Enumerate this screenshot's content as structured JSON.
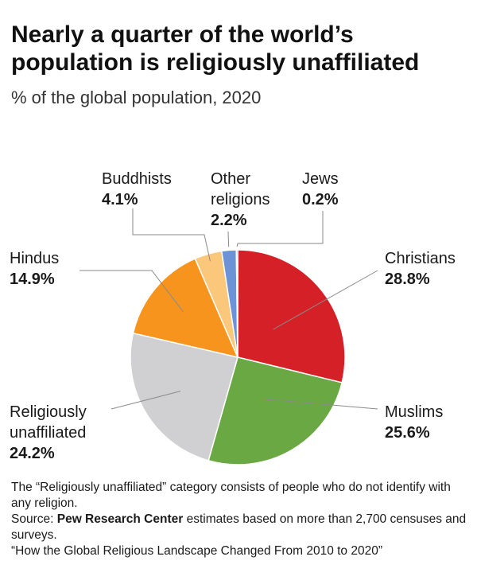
{
  "title": "Nearly a quarter of the world’s population is religiously unaffiliated",
  "subtitle": "% of the global population, 2020",
  "chart_data": {
    "type": "pie",
    "start_angle_deg": 0,
    "direction": "clockwise",
    "slices": [
      {
        "label": "Christians",
        "value": 28.8,
        "color": "#d62027",
        "value_label": "28.8%"
      },
      {
        "label": "Muslims",
        "value": 25.6,
        "color": "#6aa843",
        "value_label": "25.6%"
      },
      {
        "label": "Religiously unaffiliated",
        "value": 24.2,
        "color": "#d0d0d2",
        "value_label": "24.2%"
      },
      {
        "label": "Hindus",
        "value": 14.9,
        "color": "#f7941d",
        "value_label": "14.9%"
      },
      {
        "label": "Buddhists",
        "value": 4.1,
        "color": "#fbc77b",
        "value_label": "4.1%"
      },
      {
        "label": "Other religions",
        "value": 2.2,
        "color": "#6b93d6",
        "value_label": "2.2%"
      },
      {
        "label": "Jews",
        "value": 0.2,
        "color": "#2b4a7a",
        "value_label": "0.2%"
      }
    ]
  },
  "notes": {
    "note": "The “Religiously unaffiliated” category consists of people who do not identify with any religion.",
    "source_prefix": "Source:",
    "source_name": "Pew Research Center",
    "source_rest": "estimates based on more than 2,700 censuses and surveys.",
    "report": "“How the Global Religious Landscape Changed From 2010 to 2020”"
  }
}
